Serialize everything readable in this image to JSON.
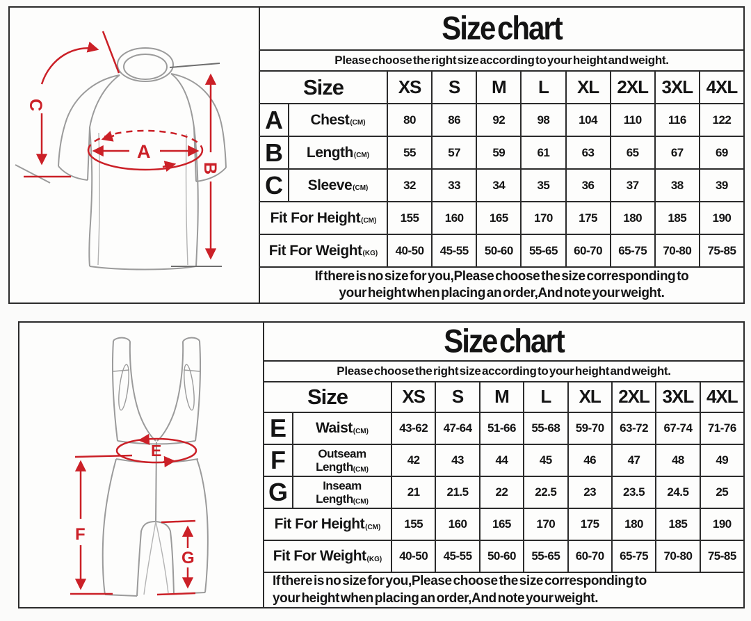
{
  "colors": {
    "accent_red": "#cb2027",
    "line_black": "#2b2b2b",
    "garment_gray": "#9b9b9b"
  },
  "panels": [
    {
      "id": "jersey",
      "title": "Size chart",
      "subtitle": "Please choose the right size according to your height and weight.",
      "size_label": "Size",
      "sizes": [
        "XS",
        "S",
        "M",
        "L",
        "XL",
        "2XL",
        "3XL",
        "4XL"
      ],
      "rows": [
        {
          "letter": "A",
          "label": "Chest",
          "unit": "(CM)",
          "values": [
            "80",
            "86",
            "92",
            "98",
            "104",
            "110",
            "116",
            "122"
          ]
        },
        {
          "letter": "B",
          "label": "Length",
          "unit": "(CM)",
          "values": [
            "55",
            "57",
            "59",
            "61",
            "63",
            "65",
            "67",
            "69"
          ]
        },
        {
          "letter": "C",
          "label": "Sleeve",
          "unit": "(CM)",
          "values": [
            "32",
            "33",
            "34",
            "35",
            "36",
            "37",
            "38",
            "39"
          ]
        },
        {
          "letter": "",
          "label": "Fit For Height",
          "unit": "(CM)",
          "values": [
            "155",
            "160",
            "165",
            "170",
            "175",
            "180",
            "185",
            "190"
          ]
        },
        {
          "letter": "",
          "label": "Fit For Weight",
          "unit": "(KG)",
          "values": [
            "40-50",
            "45-55",
            "50-60",
            "55-65",
            "60-70",
            "65-75",
            "70-80",
            "75-85"
          ]
        }
      ],
      "note_line1": "If there is no size for you,Please choose the size corresponding to",
      "note_line2": "your height when placing an order,And note your weight.",
      "diagram": {
        "a": "A",
        "b": "B",
        "c": "C"
      }
    },
    {
      "id": "bib-shorts",
      "title": "Size chart",
      "subtitle": "Please choose the right size according to your height and weight.",
      "size_label": "Size",
      "sizes": [
        "XS",
        "S",
        "M",
        "L",
        "XL",
        "2XL",
        "3XL",
        "4XL"
      ],
      "rows": [
        {
          "letter": "E",
          "label": "Waist",
          "unit": "(CM)",
          "values": [
            "43-62",
            "47-64",
            "51-66",
            "55-68",
            "59-70",
            "63-72",
            "67-74",
            "71-76"
          ]
        },
        {
          "letter": "F",
          "label": "Outseam",
          "label2": "Length",
          "unit": "(CM)",
          "values": [
            "42",
            "43",
            "44",
            "45",
            "46",
            "47",
            "48",
            "49"
          ]
        },
        {
          "letter": "G",
          "label": "Inseam",
          "label2": "Length",
          "unit": "(CM)",
          "values": [
            "21",
            "21.5",
            "22",
            "22.5",
            "23",
            "23.5",
            "24.5",
            "25"
          ]
        },
        {
          "letter": "",
          "label": "Fit For Height",
          "unit": "(CM)",
          "values": [
            "155",
            "160",
            "165",
            "170",
            "175",
            "180",
            "185",
            "190"
          ]
        },
        {
          "letter": "",
          "label": "Fit For Weight",
          "unit": "(KG)",
          "values": [
            "40-50",
            "45-55",
            "50-60",
            "55-65",
            "60-70",
            "65-75",
            "70-80",
            "75-85"
          ]
        }
      ],
      "note_line1": "If there is no size for you,Please choose the size corresponding to",
      "note_line2": "your height when placing an order,And note your weight.",
      "diagram": {
        "e": "E",
        "f": "F",
        "g": "G"
      }
    }
  ]
}
